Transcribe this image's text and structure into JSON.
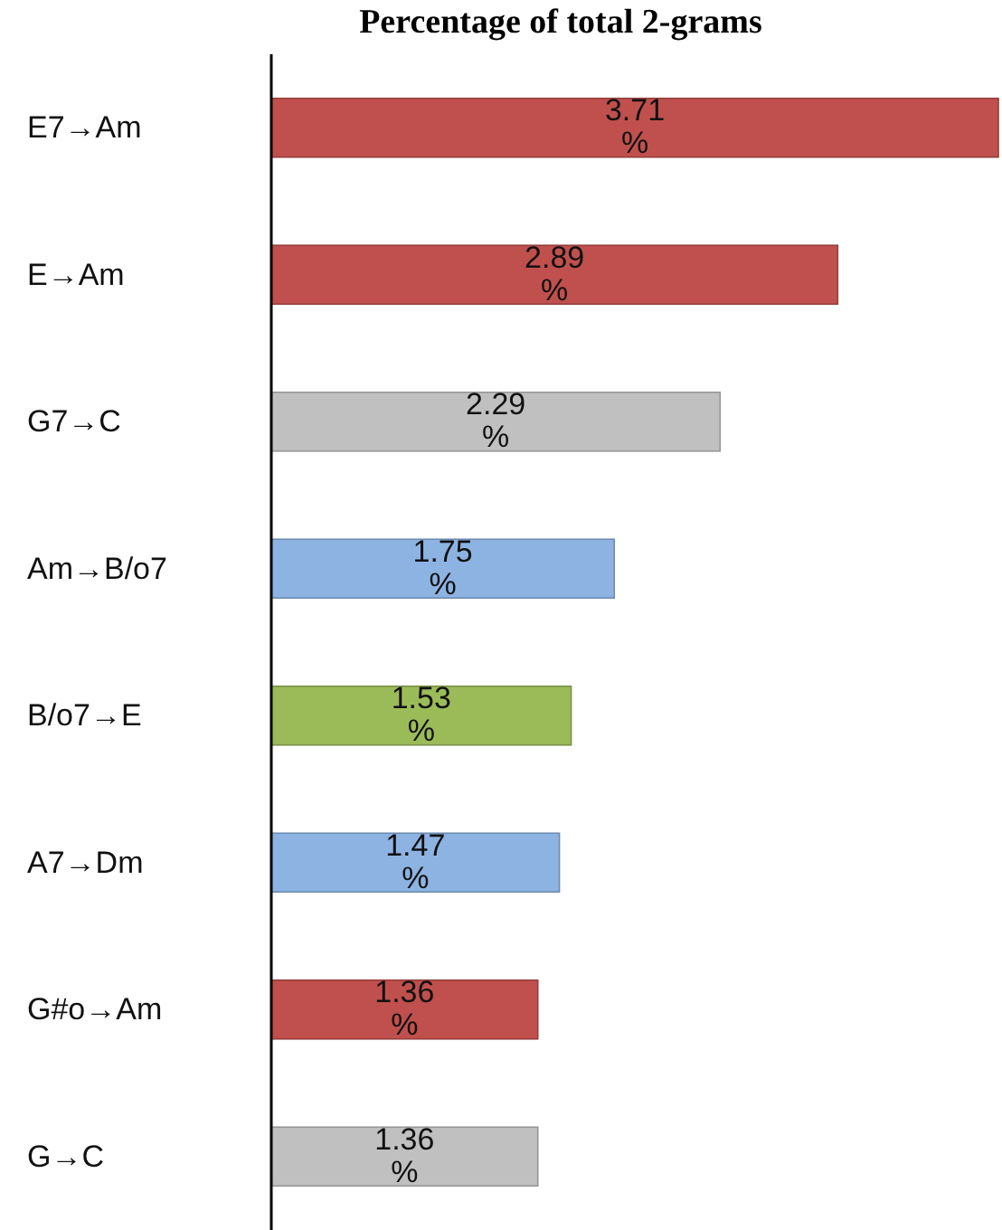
{
  "chart_data": {
    "type": "bar",
    "orientation": "horizontal",
    "title": "Percentage of total 2-grams",
    "categories": [
      "E7→Am",
      "E→Am",
      "G7→C",
      "Am→B/o7",
      "B/o7→E",
      "A7→Dm",
      "G#o→Am",
      "G→C"
    ],
    "values": [
      3.71,
      2.89,
      2.29,
      1.75,
      1.53,
      1.47,
      1.36,
      1.36
    ],
    "colors": [
      "#c0504d",
      "#c0504d",
      "#c0c0c0",
      "#8db3e2",
      "#9bbb59",
      "#8db3e2",
      "#c0504d",
      "#c0c0c0"
    ],
    "value_labels": [
      "3.71 %",
      "2.89 %",
      "2.29 %",
      "1.75 %",
      "1.53 %",
      "1.47 %",
      "1.36 %",
      "1.36 %"
    ]
  }
}
